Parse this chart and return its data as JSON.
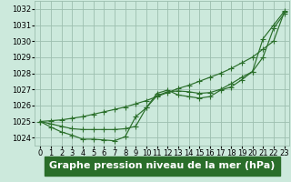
{
  "xlabel": "Graphe pression niveau de la mer (hPa)",
  "ylim": [
    1023.5,
    1032.5
  ],
  "xlim": [
    -0.5,
    23.5
  ],
  "yticks": [
    1024,
    1025,
    1026,
    1027,
    1028,
    1029,
    1030,
    1031,
    1032
  ],
  "xticks": [
    0,
    1,
    2,
    3,
    4,
    5,
    6,
    7,
    8,
    9,
    10,
    11,
    12,
    13,
    14,
    15,
    16,
    17,
    18,
    19,
    20,
    21,
    22,
    23
  ],
  "bg_color": "#cce9dc",
  "grid_color": "#9dbfaf",
  "line_color": "#2a6e2a",
  "marker_color": "#2a6e2a",
  "line1_y": [
    1025.0,
    1025.05,
    1025.1,
    1025.2,
    1025.3,
    1025.45,
    1025.6,
    1025.75,
    1025.9,
    1026.1,
    1026.3,
    1026.55,
    1026.8,
    1027.05,
    1027.25,
    1027.5,
    1027.75,
    1028.0,
    1028.3,
    1028.65,
    1029.0,
    1029.5,
    1030.0,
    1031.8
  ],
  "line2_y": [
    1025.0,
    1024.85,
    1024.7,
    1024.55,
    1024.5,
    1024.5,
    1024.5,
    1024.5,
    1024.55,
    1024.7,
    1025.85,
    1026.6,
    1026.85,
    1026.9,
    1026.85,
    1026.75,
    1026.8,
    1027.0,
    1027.35,
    1027.75,
    1028.1,
    1029.0,
    1030.8,
    1031.7
  ],
  "line3_y": [
    1025.0,
    1024.65,
    1024.35,
    1024.15,
    1023.9,
    1023.9,
    1023.85,
    1023.8,
    1024.05,
    1025.3,
    1025.85,
    1026.75,
    1026.95,
    1026.65,
    1026.55,
    1026.45,
    1026.55,
    1026.95,
    1027.15,
    1027.6,
    1028.1,
    1030.15,
    1031.0,
    1031.85
  ],
  "tick_fontsize": 6.0,
  "xlabel_fontsize": 8.0,
  "marker_size": 2.2,
  "linewidth": 0.85
}
